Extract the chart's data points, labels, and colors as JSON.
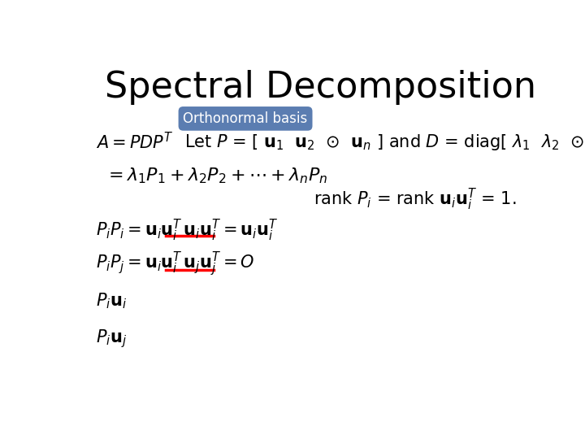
{
  "title": "Spectral Decomposition",
  "title_fontsize": 32,
  "background_color": "#ffffff",
  "badge_text": "Orthonormal basis",
  "badge_bg": "#5b7db1",
  "badge_fg": "#ffffff",
  "badge_fontsize": 12,
  "math_fontsize": 15
}
